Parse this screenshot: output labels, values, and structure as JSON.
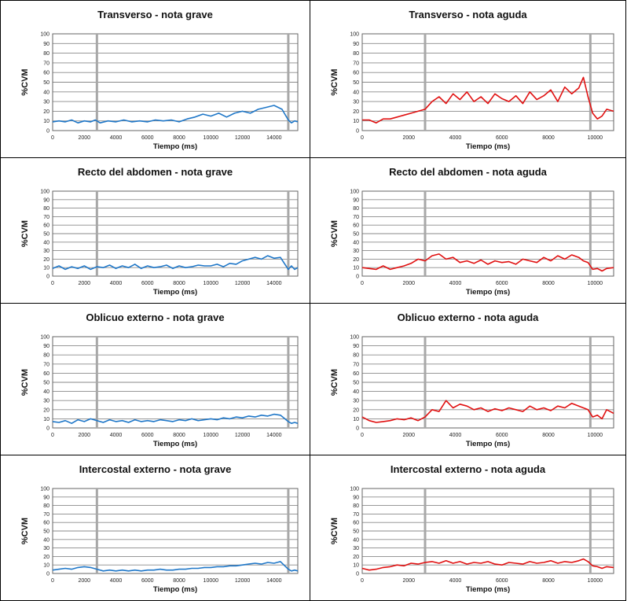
{
  "chart_data": [
    {
      "type": "line",
      "title": "Transverso - nota grave",
      "xlabel": "Tiempo (ms)",
      "ylabel": "%CVM",
      "xlim": [
        0,
        15500
      ],
      "ylim": [
        0,
        100
      ],
      "xticks": [
        0,
        2000,
        4000,
        6000,
        8000,
        10000,
        12000,
        14000
      ],
      "yticks": [
        0,
        10,
        20,
        30,
        40,
        50,
        60,
        70,
        80,
        90,
        100
      ],
      "markers": [
        2800,
        14900
      ],
      "color": "#1f77c8",
      "series": [
        {
          "x": [
            0,
            400,
            800,
            1200,
            1600,
            2000,
            2400,
            2700,
            3000,
            3500,
            4000,
            4500,
            5000,
            5500,
            6000,
            6500,
            7000,
            7500,
            8000,
            8500,
            9000,
            9500,
            10000,
            10500,
            11000,
            11500,
            12000,
            12500,
            13000,
            13500,
            14000,
            14500,
            14900,
            15100,
            15300,
            15500
          ],
          "values": [
            9,
            10,
            9,
            11,
            8,
            10,
            9,
            11,
            8,
            10,
            9,
            11,
            9,
            10,
            9,
            11,
            10,
            11,
            9,
            12,
            14,
            17,
            15,
            18,
            14,
            18,
            20,
            18,
            22,
            24,
            26,
            22,
            11,
            8,
            10,
            9
          ]
        }
      ]
    },
    {
      "type": "line",
      "title": "Transverso - nota aguda",
      "xlabel": "Tiempo (ms)",
      "ylabel": "%CVM",
      "xlim": [
        0,
        10800
      ],
      "ylim": [
        0,
        100
      ],
      "xticks": [
        0,
        2000,
        4000,
        6000,
        8000,
        10000
      ],
      "yticks": [
        0,
        10,
        20,
        30,
        40,
        50,
        60,
        70,
        80,
        90,
        100
      ],
      "markers": [
        2700,
        9800
      ],
      "color": "#e01010",
      "series": [
        {
          "x": [
            0,
            300,
            600,
            900,
            1200,
            1500,
            1800,
            2100,
            2400,
            2700,
            3000,
            3300,
            3600,
            3900,
            4200,
            4500,
            4800,
            5100,
            5400,
            5700,
            6000,
            6300,
            6600,
            6900,
            7200,
            7500,
            7800,
            8100,
            8400,
            8700,
            9000,
            9300,
            9500,
            9700,
            9900,
            10100,
            10300,
            10500,
            10800
          ],
          "values": [
            11,
            11,
            8,
            12,
            12,
            14,
            16,
            18,
            20,
            22,
            30,
            35,
            28,
            38,
            32,
            40,
            30,
            35,
            28,
            38,
            33,
            30,
            36,
            28,
            40,
            32,
            36,
            42,
            30,
            45,
            38,
            44,
            55,
            35,
            18,
            12,
            15,
            22,
            20
          ]
        }
      ]
    },
    {
      "type": "line",
      "title": "Recto del abdomen - nota grave",
      "xlabel": "Tiempo (ms)",
      "ylabel": "%CVM",
      "xlim": [
        0,
        15500
      ],
      "ylim": [
        0,
        100
      ],
      "xticks": [
        0,
        2000,
        4000,
        6000,
        8000,
        10000,
        12000,
        14000
      ],
      "yticks": [
        0,
        10,
        20,
        30,
        40,
        50,
        60,
        70,
        80,
        90,
        100
      ],
      "markers": [
        2800,
        14900
      ],
      "color": "#1f77c8",
      "series": [
        {
          "x": [
            0,
            400,
            800,
            1200,
            1600,
            2000,
            2400,
            2800,
            3200,
            3600,
            4000,
            4400,
            4800,
            5200,
            5600,
            6000,
            6400,
            6800,
            7200,
            7600,
            8000,
            8400,
            8800,
            9200,
            9600,
            10000,
            10400,
            10800,
            11200,
            11600,
            12000,
            12400,
            12800,
            13200,
            13600,
            14000,
            14400,
            14900,
            15100,
            15300,
            15500
          ],
          "values": [
            9,
            12,
            8,
            11,
            9,
            12,
            8,
            11,
            10,
            13,
            9,
            12,
            10,
            14,
            9,
            12,
            10,
            11,
            13,
            9,
            12,
            10,
            11,
            13,
            12,
            12,
            14,
            11,
            15,
            14,
            18,
            20,
            22,
            20,
            24,
            21,
            22,
            8,
            12,
            8,
            10
          ]
        }
      ]
    },
    {
      "type": "line",
      "title": "Recto del abdomen - nota aguda",
      "xlabel": "Tiempo (ms)",
      "ylabel": "%CVM",
      "xlim": [
        0,
        10800
      ],
      "ylim": [
        0,
        100
      ],
      "xticks": [
        0,
        2000,
        4000,
        6000,
        8000,
        10000
      ],
      "yticks": [
        0,
        10,
        20,
        30,
        40,
        50,
        60,
        70,
        80,
        90,
        100
      ],
      "markers": [
        2700,
        9800
      ],
      "color": "#e01010",
      "series": [
        {
          "x": [
            0,
            300,
            600,
            900,
            1200,
            1500,
            1800,
            2100,
            2400,
            2700,
            3000,
            3300,
            3600,
            3900,
            4200,
            4500,
            4800,
            5100,
            5400,
            5700,
            6000,
            6300,
            6600,
            6900,
            7200,
            7500,
            7800,
            8100,
            8400,
            8700,
            9000,
            9300,
            9500,
            9700,
            9900,
            10100,
            10300,
            10500,
            10800
          ],
          "values": [
            10,
            9,
            8,
            12,
            8,
            10,
            12,
            15,
            20,
            18,
            24,
            26,
            20,
            22,
            16,
            18,
            15,
            19,
            14,
            18,
            16,
            17,
            14,
            20,
            18,
            16,
            22,
            18,
            24,
            20,
            25,
            22,
            18,
            16,
            8,
            9,
            6,
            9,
            10
          ]
        }
      ]
    },
    {
      "type": "line",
      "title": "Oblicuo externo - nota grave",
      "xlabel": "Tiempo (ms)",
      "ylabel": "%CVM",
      "xlim": [
        0,
        15500
      ],
      "ylim": [
        0,
        100
      ],
      "xticks": [
        0,
        2000,
        4000,
        6000,
        8000,
        10000,
        12000,
        14000
      ],
      "yticks": [
        0,
        10,
        20,
        30,
        40,
        50,
        60,
        70,
        80,
        90,
        100
      ],
      "markers": [
        2800,
        14900
      ],
      "color": "#1f77c8",
      "series": [
        {
          "x": [
            0,
            400,
            800,
            1200,
            1600,
            2000,
            2400,
            2800,
            3200,
            3600,
            4000,
            4400,
            4800,
            5200,
            5600,
            6000,
            6400,
            6800,
            7200,
            7600,
            8000,
            8400,
            8800,
            9200,
            9600,
            10000,
            10400,
            10800,
            11200,
            11600,
            12000,
            12400,
            12800,
            13200,
            13600,
            14000,
            14400,
            14900,
            15100,
            15300,
            15500
          ],
          "values": [
            7,
            6,
            8,
            5,
            9,
            7,
            10,
            8,
            6,
            9,
            7,
            8,
            6,
            9,
            7,
            8,
            7,
            9,
            8,
            7,
            9,
            8,
            10,
            8,
            9,
            10,
            9,
            11,
            10,
            12,
            11,
            13,
            12,
            14,
            13,
            15,
            14,
            7,
            5,
            6,
            5
          ]
        }
      ]
    },
    {
      "type": "line",
      "title": "Oblicuo externo - nota aguda",
      "xlabel": "Tiempo (ms)",
      "ylabel": "%CVM",
      "xlim": [
        0,
        10800
      ],
      "ylim": [
        0,
        100
      ],
      "xticks": [
        0,
        2000,
        4000,
        6000,
        8000,
        10000
      ],
      "yticks": [
        0,
        10,
        20,
        30,
        40,
        50,
        60,
        70,
        80,
        90,
        100
      ],
      "markers": [
        2700,
        9800
      ],
      "color": "#e01010",
      "series": [
        {
          "x": [
            0,
            300,
            600,
            900,
            1200,
            1500,
            1800,
            2100,
            2400,
            2700,
            3000,
            3300,
            3600,
            3900,
            4200,
            4500,
            4800,
            5100,
            5400,
            5700,
            6000,
            6300,
            6600,
            6900,
            7200,
            7500,
            7800,
            8100,
            8400,
            8700,
            9000,
            9300,
            9500,
            9700,
            9900,
            10100,
            10300,
            10500,
            10800
          ],
          "values": [
            12,
            8,
            6,
            7,
            8,
            10,
            9,
            11,
            8,
            12,
            20,
            18,
            30,
            22,
            26,
            24,
            20,
            22,
            18,
            21,
            19,
            22,
            20,
            18,
            24,
            20,
            22,
            19,
            24,
            22,
            27,
            24,
            22,
            20,
            12,
            14,
            10,
            20,
            16
          ]
        }
      ]
    },
    {
      "type": "line",
      "title": "Intercostal externo - nota grave",
      "xlabel": "Tiempo (ms)",
      "ylabel": "%CVM",
      "xlim": [
        0,
        15500
      ],
      "ylim": [
        0,
        100
      ],
      "xticks": [
        0,
        2000,
        4000,
        6000,
        8000,
        10000,
        12000,
        14000
      ],
      "yticks": [
        0,
        10,
        20,
        30,
        40,
        50,
        60,
        70,
        80,
        90,
        100
      ],
      "markers": [
        2800,
        14900
      ],
      "color": "#1f77c8",
      "series": [
        {
          "x": [
            0,
            400,
            800,
            1200,
            1600,
            2000,
            2400,
            2800,
            3200,
            3600,
            4000,
            4400,
            4800,
            5200,
            5600,
            6000,
            6400,
            6800,
            7200,
            7600,
            8000,
            8400,
            8800,
            9200,
            9600,
            10000,
            10400,
            10800,
            11200,
            11600,
            12000,
            12400,
            12800,
            13200,
            13600,
            14000,
            14400,
            14900,
            15100,
            15300,
            15500
          ],
          "values": [
            4,
            5,
            6,
            5,
            7,
            8,
            7,
            5,
            3,
            4,
            3,
            4,
            3,
            4,
            3,
            4,
            4,
            5,
            4,
            4,
            5,
            5,
            6,
            6,
            7,
            7,
            8,
            8,
            9,
            9,
            10,
            11,
            12,
            11,
            13,
            12,
            14,
            5,
            3,
            4,
            3
          ]
        }
      ]
    },
    {
      "type": "line",
      "title": "Intercostal externo - nota aguda",
      "xlabel": "Tiempo (ms)",
      "ylabel": "%CVM",
      "xlim": [
        0,
        10800
      ],
      "ylim": [
        0,
        100
      ],
      "xticks": [
        0,
        2000,
        4000,
        6000,
        8000,
        10000
      ],
      "yticks": [
        0,
        10,
        20,
        30,
        40,
        50,
        60,
        70,
        80,
        90,
        100
      ],
      "markers": [
        2700,
        9800
      ],
      "color": "#e01010",
      "series": [
        {
          "x": [
            0,
            300,
            600,
            900,
            1200,
            1500,
            1800,
            2100,
            2400,
            2700,
            3000,
            3300,
            3600,
            3900,
            4200,
            4500,
            4800,
            5100,
            5400,
            5700,
            6000,
            6300,
            6600,
            6900,
            7200,
            7500,
            7800,
            8100,
            8400,
            8700,
            9000,
            9300,
            9500,
            9700,
            9900,
            10100,
            10300,
            10500,
            10800
          ],
          "values": [
            6,
            4,
            5,
            7,
            8,
            10,
            9,
            12,
            11,
            13,
            14,
            12,
            15,
            12,
            14,
            11,
            13,
            12,
            14,
            11,
            10,
            13,
            12,
            11,
            14,
            12,
            13,
            15,
            12,
            14,
            13,
            15,
            17,
            14,
            9,
            8,
            6,
            8,
            7
          ]
        }
      ]
    }
  ]
}
